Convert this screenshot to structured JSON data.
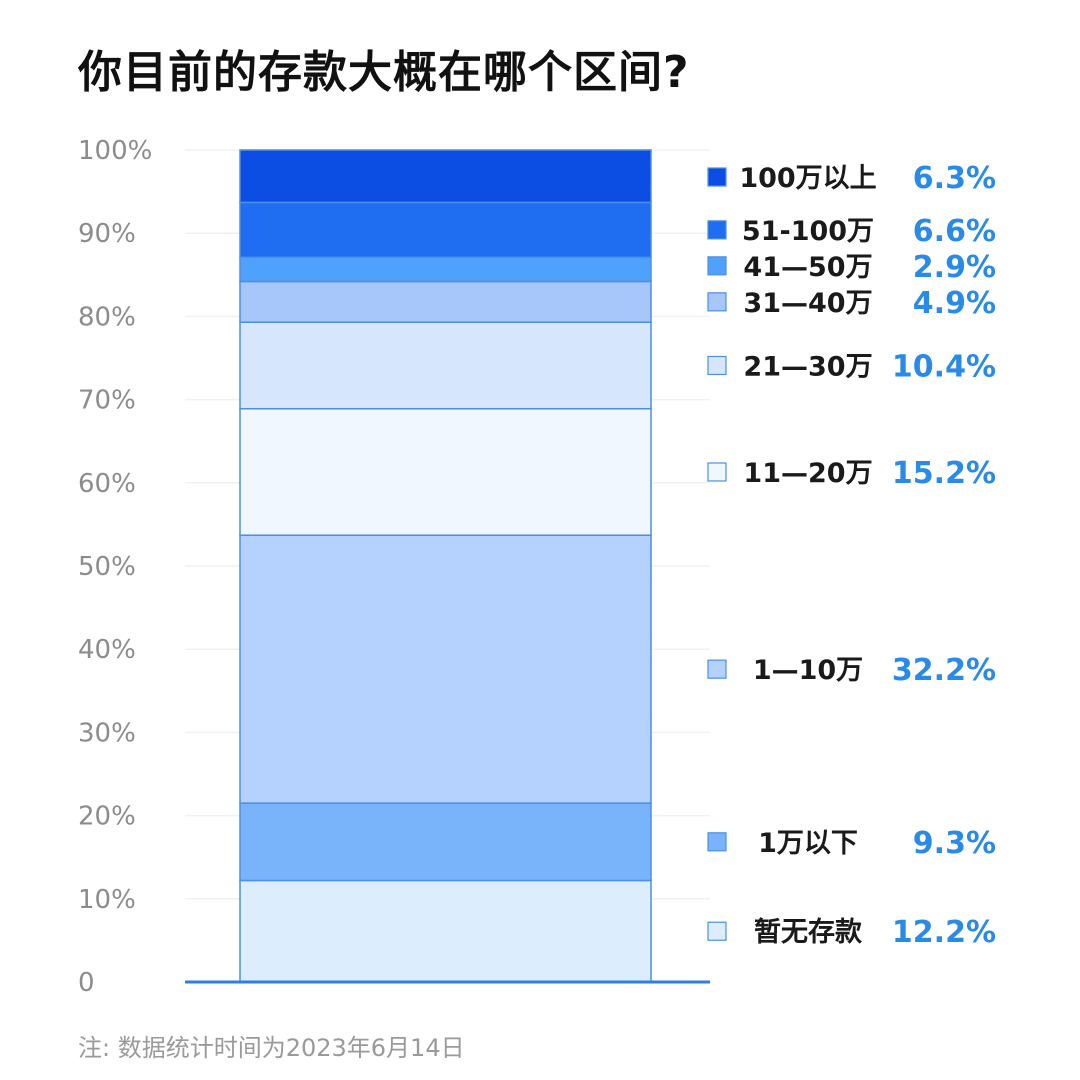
{
  "title": "你目前的存款大概在哪个区间?",
  "footnote": "注: 数据统计时间为2023年6月14日",
  "chart_data": {
    "type": "bar",
    "stacked": true,
    "title": "你目前的存款大概在哪个区间?",
    "ylim": [
      0,
      100
    ],
    "y_ticks": [
      "0",
      "10%",
      "20%",
      "30%",
      "40%",
      "50%",
      "60%",
      "70%",
      "80%",
      "90%",
      "100%"
    ],
    "grid": true,
    "legend_position": "right",
    "series": [
      {
        "name": "暂无存款",
        "value": 12.2,
        "label": "12.2%",
        "color": "#dcedfd"
      },
      {
        "name": "1万以下",
        "value": 9.3,
        "label": "9.3%",
        "color": "#79b3f9"
      },
      {
        "name": "1—10万",
        "value": 32.2,
        "label": "32.2%",
        "color": "#b5d1fd"
      },
      {
        "name": "11—20万",
        "value": 15.2,
        "label": "15.2%",
        "color": "#f1f7fe"
      },
      {
        "name": "21—30万",
        "value": 10.4,
        "label": "10.4%",
        "color": "#d6e7fd"
      },
      {
        "name": "31—40万",
        "value": 4.9,
        "label": "4.9%",
        "color": "#a7c7fb"
      },
      {
        "name": "41—50万",
        "value": 2.9,
        "label": "2.9%",
        "color": "#4fa2fb"
      },
      {
        "name": "51-100万",
        "value": 6.6,
        "label": "6.6%",
        "color": "#1f6df1"
      },
      {
        "name": "100万以上",
        "value": 6.3,
        "label": "6.3%",
        "color": "#0c4ee4"
      }
    ],
    "colors": {
      "value_text": "#2a8ae8",
      "tick_text": "#8c8c8c",
      "axis": "#2e7fe0",
      "segment_border": "#4c8fe6"
    }
  }
}
